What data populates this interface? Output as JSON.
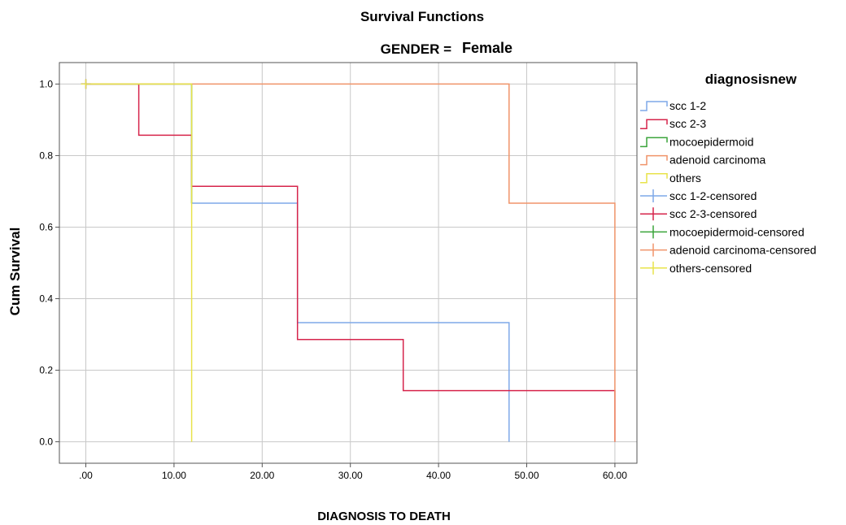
{
  "chart_data": {
    "type": "line",
    "step": true,
    "title": "Survival Functions",
    "subtitle_label": "GENDER =",
    "subtitle_value": "Female",
    "xlabel": "DIAGNOSIS TO DEATH",
    "ylabel": "Cum Survival",
    "xlim": [
      -3,
      62.5
    ],
    "ylim": [
      -0.06,
      1.06
    ],
    "x_ticks": [
      0,
      10,
      20,
      30,
      40,
      50,
      60
    ],
    "x_tick_labels": [
      ".00",
      "10.00",
      "20.00",
      "30.00",
      "40.00",
      "50.00",
      "60.00"
    ],
    "y_ticks": [
      0,
      0.2,
      0.4,
      0.6,
      0.8,
      1.0
    ],
    "y_tick_labels": [
      "0.0",
      "0.2",
      "0.4",
      "0.6",
      "0.8",
      "1.0"
    ],
    "grid": true,
    "legend_title": "diagnosisnew",
    "legend_position": "right",
    "series": [
      {
        "name": "scc 1-2",
        "color": "#7fa9e9",
        "x": [
          0,
          12,
          12,
          24,
          24,
          48,
          48
        ],
        "y": [
          1.0,
          1.0,
          0.667,
          0.667,
          0.333,
          0.333,
          0.0
        ]
      },
      {
        "name": "scc 2-3",
        "color": "#d6244b",
        "x": [
          0,
          6,
          6,
          12,
          12,
          24,
          24,
          36,
          36,
          60,
          60
        ],
        "y": [
          1.0,
          1.0,
          0.857,
          0.857,
          0.714,
          0.714,
          0.286,
          0.286,
          0.143,
          0.143,
          0.0
        ]
      },
      {
        "name": "mocoepidermoid",
        "color": "#3aa43a",
        "x": [
          0,
          12,
          12
        ],
        "y": [
          1.0,
          1.0,
          0.667
        ]
      },
      {
        "name": "adenoid carcinoma",
        "color": "#f0946a",
        "x": [
          0,
          48,
          48,
          60,
          60
        ],
        "y": [
          1.0,
          1.0,
          0.667,
          0.667,
          0.0
        ]
      },
      {
        "name": "others",
        "color": "#e8e34a",
        "x": [
          0,
          12,
          12
        ],
        "y": [
          1.0,
          1.0,
          0.0
        ]
      }
    ],
    "censored": [
      {
        "name": "scc 1-2-censored",
        "color": "#7fa9e9",
        "points": [
          [
            0,
            1.0
          ]
        ]
      },
      {
        "name": "scc 2-3-censored",
        "color": "#d6244b",
        "points": [
          [
            0,
            1.0
          ]
        ]
      },
      {
        "name": "mocoepidermoid-censored",
        "color": "#3aa43a",
        "points": [
          [
            0,
            1.0
          ]
        ]
      },
      {
        "name": "adenoid carcinoma-censored",
        "color": "#f0946a",
        "points": [
          [
            0,
            1.0
          ]
        ]
      },
      {
        "name": "others-censored",
        "color": "#e8e34a",
        "points": [
          [
            0,
            1.0
          ]
        ]
      }
    ]
  }
}
